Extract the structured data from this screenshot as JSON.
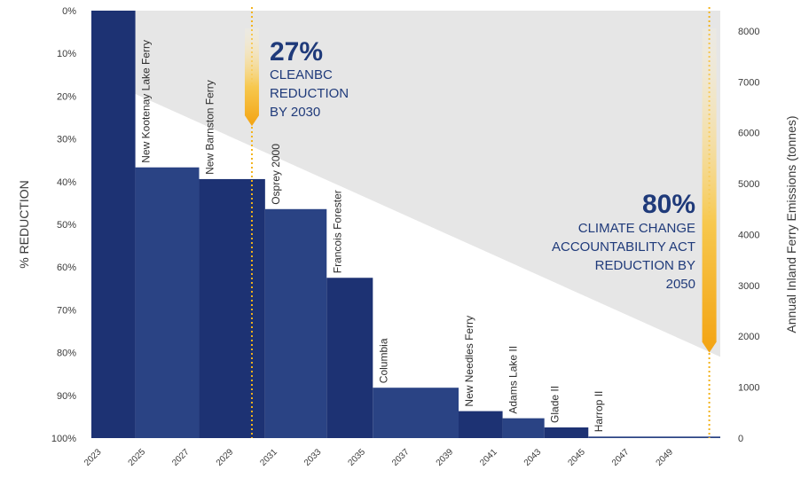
{
  "chart_data": {
    "type": "bar",
    "ylabel_left": "% REDUCTION",
    "ylabel_right": "Annual Inland Ferry Emissions (tonnes)",
    "left_ticks": [
      "0%",
      "10%",
      "20%",
      "30%",
      "40%",
      "50%",
      "60%",
      "70%",
      "80%",
      "90%",
      "100%"
    ],
    "right_ticks": [
      "8000",
      "7000",
      "6000",
      "5000",
      "4000",
      "3000",
      "2000",
      "1000",
      "0"
    ],
    "x_ticks": [
      "2023",
      "2025",
      "2027",
      "2029",
      "2031",
      "2033",
      "2035",
      "2037",
      "2039",
      "2041",
      "2043",
      "2045",
      "2047",
      "2049"
    ],
    "x_range": [
      2022.7,
      2051.3
    ],
    "y_range_right": [
      0,
      8400
    ],
    "y_range_left_pct": [
      0,
      100
    ],
    "bars": [
      {
        "x0": 2022.7,
        "x1": 2024.7,
        "value": 8400,
        "label": ""
      },
      {
        "x0": 2024.7,
        "x1": 2027.6,
        "value": 5320,
        "label": "New Kootenay Lake Ferry"
      },
      {
        "x0": 2027.6,
        "x1": 2030.6,
        "value": 5090,
        "label": "New Barnston Ferry"
      },
      {
        "x0": 2030.6,
        "x1": 2033.4,
        "value": 4500,
        "label": "Osprey 2000"
      },
      {
        "x0": 2033.4,
        "x1": 2035.5,
        "value": 3150,
        "label": "Francois Forester"
      },
      {
        "x0": 2035.5,
        "x1": 2039.4,
        "value": 990,
        "label": "Columbia"
      },
      {
        "x0": 2039.4,
        "x1": 2041.4,
        "value": 530,
        "label": "New Needles Ferry"
      },
      {
        "x0": 2041.4,
        "x1": 2043.3,
        "value": 390,
        "label": "Adams Lake II"
      },
      {
        "x0": 2043.3,
        "x1": 2045.3,
        "value": 210,
        "label": "Glade II"
      },
      {
        "x0": 2045.3,
        "x1": 2051.3,
        "value": 30,
        "label": "Harrop II"
      }
    ],
    "target_line": {
      "x_start": 2024.7,
      "pct_start": 19.5,
      "x_end": 2051.3,
      "pct_end": 81
    },
    "markers": [
      {
        "x": 2030,
        "pct": 27,
        "pct_text": "27%",
        "lines": [
          "CLEANBC",
          "REDUCTION",
          "BY 2030"
        ],
        "align": "left"
      },
      {
        "x": 2050.8,
        "pct": 80,
        "pct_text": "80%",
        "lines": [
          "CLIMATE CHANGE",
          "ACCOUNTABILITY ACT",
          "REDUCTION BY",
          "2050"
        ],
        "align": "right"
      }
    ],
    "colors": {
      "bar_dark": "#1d3273",
      "bar_alt": "#2a4384",
      "target_area": "#e6e6e6",
      "marker": "#f3b31b"
    },
    "grid": false
  }
}
